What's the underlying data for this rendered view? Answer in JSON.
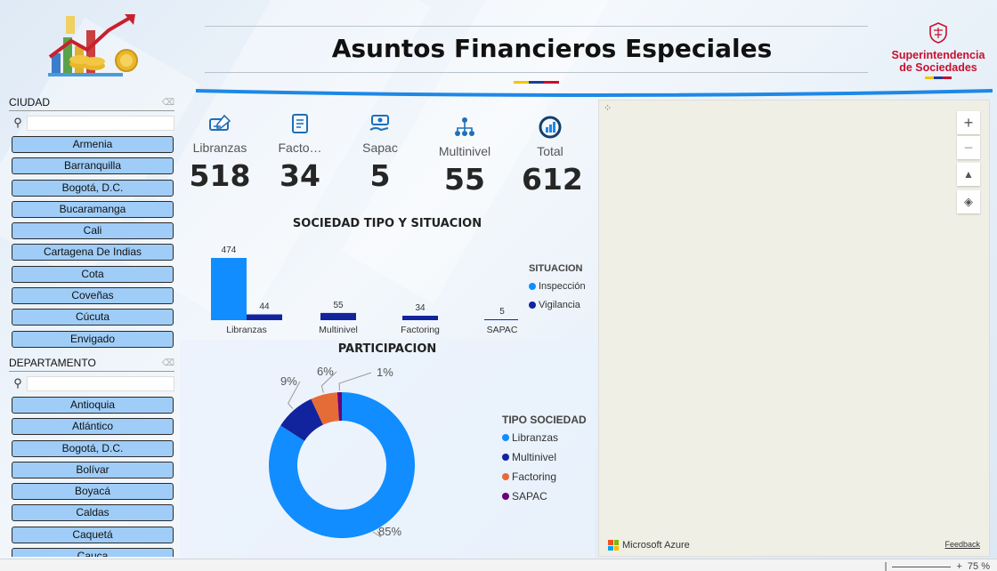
{
  "header": {
    "title": "Asuntos Financieros Especiales",
    "brand_line1": "Superintendencia",
    "brand_line2": "de Sociedades",
    "flag_colors": [
      "#f5c400",
      "#1f3b9b",
      "#c8102e"
    ]
  },
  "ciudad": {
    "label": "CIUDAD",
    "items": [
      "Armenia",
      "Barranquilla",
      "Bogotá, D.C.",
      "Bucaramanga",
      "Cali",
      "Cartagena De Indias",
      "Cota",
      "Coveñas",
      "Cúcuta",
      "Envigado"
    ]
  },
  "departamento": {
    "label": "DEPARTAMENTO",
    "items": [
      "Antioquia",
      "Atlántico",
      "Bogotá, D.C.",
      "Bolívar",
      "Boyacá",
      "Caldas",
      "Caquetá",
      "Cauca"
    ]
  },
  "kpis": [
    {
      "label": "Libranzas",
      "value": "518",
      "icon": "check-icon"
    },
    {
      "label": "Facto…",
      "value": "34",
      "icon": "invoice-icon"
    },
    {
      "label": "Sapac",
      "value": "5",
      "icon": "money-hand-icon"
    },
    {
      "label": "Multinivel",
      "value": "55",
      "icon": "network-icon"
    },
    {
      "label": "Total",
      "value": "612",
      "icon": "total-chart-icon"
    }
  ],
  "bar_section": {
    "title": "SOCIEDAD TIPO Y SITUACION"
  },
  "donut_section": {
    "title": "PARTICIPACION"
  },
  "chart_data": [
    {
      "type": "bar",
      "title": "SOCIEDAD TIPO Y SITUACION",
      "categories": [
        "Libranzas",
        "Multinivel",
        "Factoring",
        "SAPAC"
      ],
      "series": [
        {
          "name": "Inspección",
          "color": "#118dff",
          "values": [
            474,
            null,
            null,
            null
          ]
        },
        {
          "name": "Vigilancia",
          "color": "#12239e",
          "values": [
            44,
            55,
            34,
            5
          ]
        }
      ],
      "legend_title": "SITUACION",
      "legend_position": "right"
    },
    {
      "type": "pie",
      "title": "PARTICIPACION",
      "labels": [
        "Libranzas",
        "Multinivel",
        "Factoring",
        "SAPAC"
      ],
      "values": [
        85,
        9,
        6,
        1
      ],
      "display_labels": [
        "85%",
        "9%",
        "6%",
        "1%"
      ],
      "colors": [
        "#118dff",
        "#12239e",
        "#e66c37",
        "#6b007b"
      ],
      "legend_title": "TIPO SOCIEDAD",
      "legend_position": "right"
    }
  ],
  "map": {
    "attribution": "Microsoft Azure",
    "feedback": "Feedback",
    "zoom_in": "+",
    "zoom_out": "−"
  },
  "status": {
    "zoom_label": "75 %"
  }
}
